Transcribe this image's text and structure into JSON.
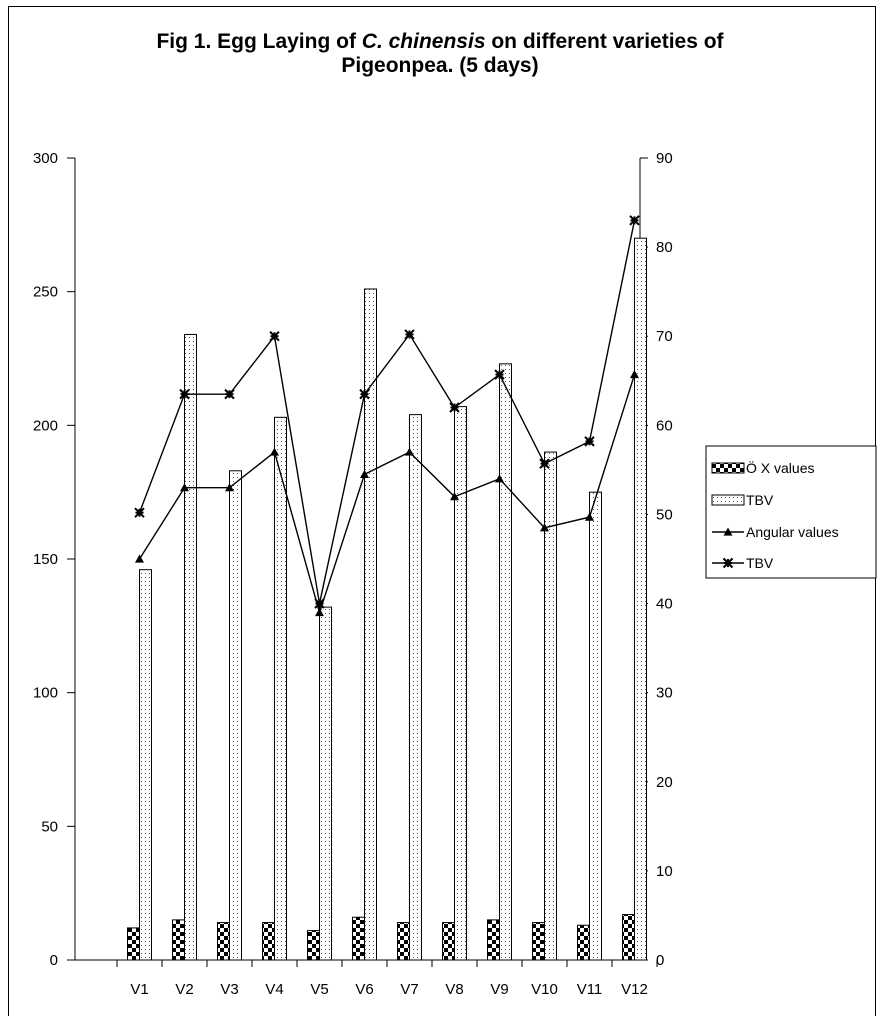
{
  "chart_data": {
    "type": "bar",
    "title": {
      "part1": "Fig 1. Egg Laying of ",
      "italic": "C. chinensis",
      "part2": " on different varieties of",
      "line2": "Pigeonpea. (5 days)"
    },
    "categories": [
      "V1",
      "V2",
      "V3",
      "V4",
      "V5",
      "V6",
      "V7",
      "V8",
      "V9",
      "V10",
      "V11",
      "V12"
    ],
    "y_left": {
      "ticks": [
        0,
        50,
        100,
        150,
        200,
        250,
        300
      ],
      "range": [
        0,
        300
      ]
    },
    "y_right": {
      "ticks": [
        0,
        10,
        20,
        30,
        40,
        50,
        60,
        70,
        80,
        90
      ],
      "range": [
        0,
        90
      ]
    },
    "series": [
      {
        "name": "Ö X values",
        "kind": "bar",
        "pattern": "checker",
        "axis": "left",
        "values": [
          12,
          15,
          14,
          14,
          11,
          16,
          14,
          14,
          15,
          14,
          13,
          17
        ]
      },
      {
        "name": "TBV",
        "kind": "bar",
        "pattern": "dotted",
        "axis": "left",
        "values": [
          146,
          234,
          183,
          203,
          132,
          251,
          204,
          207,
          223,
          190,
          175,
          270
        ]
      },
      {
        "name": "Angular values",
        "kind": "line",
        "marker": "triangle",
        "axis": "right",
        "values": [
          45,
          53,
          53,
          57,
          39,
          54.5,
          57,
          52,
          54,
          48.5,
          49.7,
          65.7
        ]
      },
      {
        "name": "TBV",
        "kind": "line",
        "marker": "star",
        "axis": "right",
        "values": [
          50.2,
          63.5,
          63.5,
          70,
          40,
          63.5,
          70.2,
          62,
          65.7,
          55.7,
          58.2,
          83
        ]
      }
    ],
    "legend": "right",
    "grid": false
  },
  "colors": {
    "ink": "#000000",
    "background": "#ffffff"
  }
}
